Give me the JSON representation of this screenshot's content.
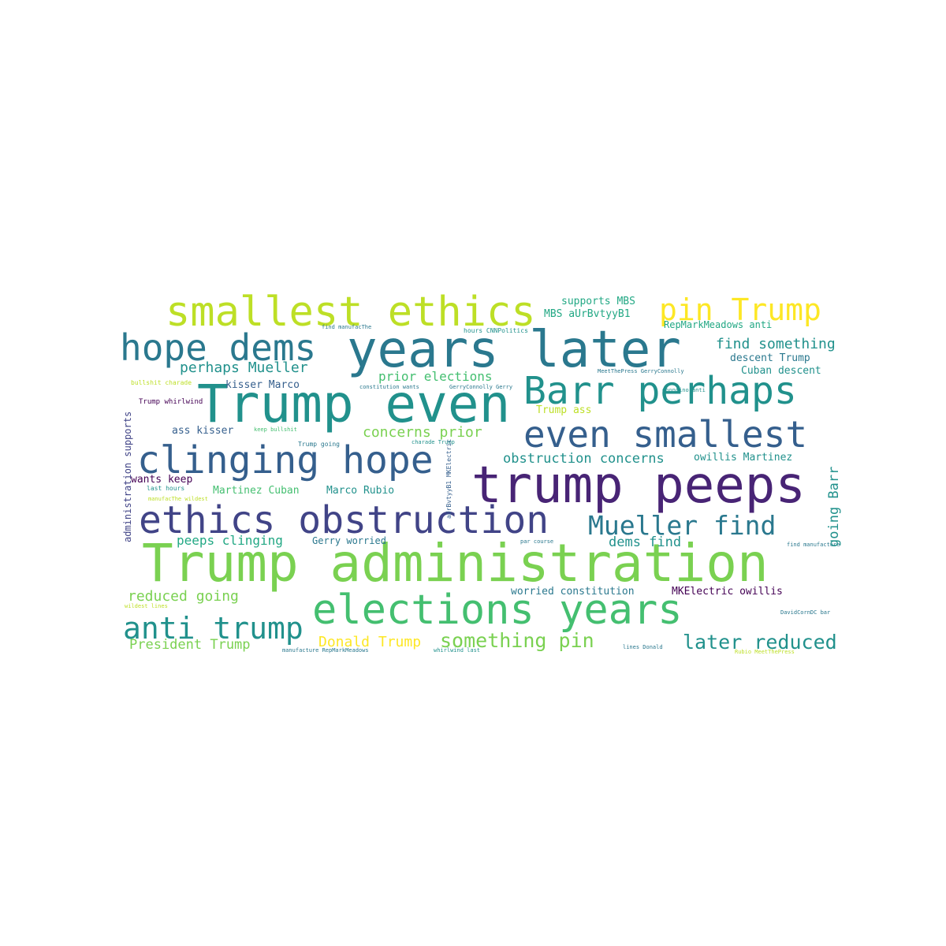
{
  "colors": {
    "c1": "#fde725",
    "c2": "#bddf26",
    "c3": "#7ad151",
    "c4": "#44bf70",
    "c5": "#22a884",
    "c6": "#21918c",
    "c7": "#2a788e",
    "c8": "#355f8d",
    "c9": "#414487",
    "c10": "#482475",
    "c11": "#440154"
  },
  "words": [
    "smallest ethics",
    "pin Trump",
    "hope dems",
    "years later",
    "Trump even",
    "Barr perhaps",
    "even smallest",
    "clinging hope",
    "trump peeps",
    "ethics obstruction",
    "Mueller find",
    "Trump administration",
    "elections years",
    "anti trump",
    "later reduced",
    "something pin",
    "Donald Trump",
    "President Trump",
    "reduced going",
    "supports MBS",
    "MBS aUrBvtyyB1",
    "RepMarkMeadows anti",
    "find something",
    "descent Trump",
    "Cuban descent",
    "perhaps Mueller",
    "prior elections",
    "kisser Marco",
    "Trump ass",
    "concerns prior",
    "ass kisser",
    "obstruction concerns",
    "owillis Martinez",
    "wants keep",
    "Martinez Cuban",
    "Marco Rubio",
    "peeps clinging",
    "Gerry worried",
    "dems find",
    "worried constitution",
    "MKElectric owillis",
    "bullshit charade",
    "Trump whirlwind",
    "keep bullshit",
    "Trump going",
    "last hours",
    "manufacThe wildest",
    "wildest lines",
    "find manufacThe",
    "hours CNNPolitics",
    "constitution wants",
    "GerryConnolly Gerry",
    "MeetThePress GerryConnolly",
    "doongino anti",
    "charade Trump",
    "par course",
    "find manufacture",
    "DavidCornDC bar",
    "manufacture RepMarkMeadows",
    "whirlwind last",
    "lines Donald",
    "Rubio MeetThePress",
    "administration supports",
    "going Barr",
    "aUrBvtyyB1 MKElectric"
  ]
}
